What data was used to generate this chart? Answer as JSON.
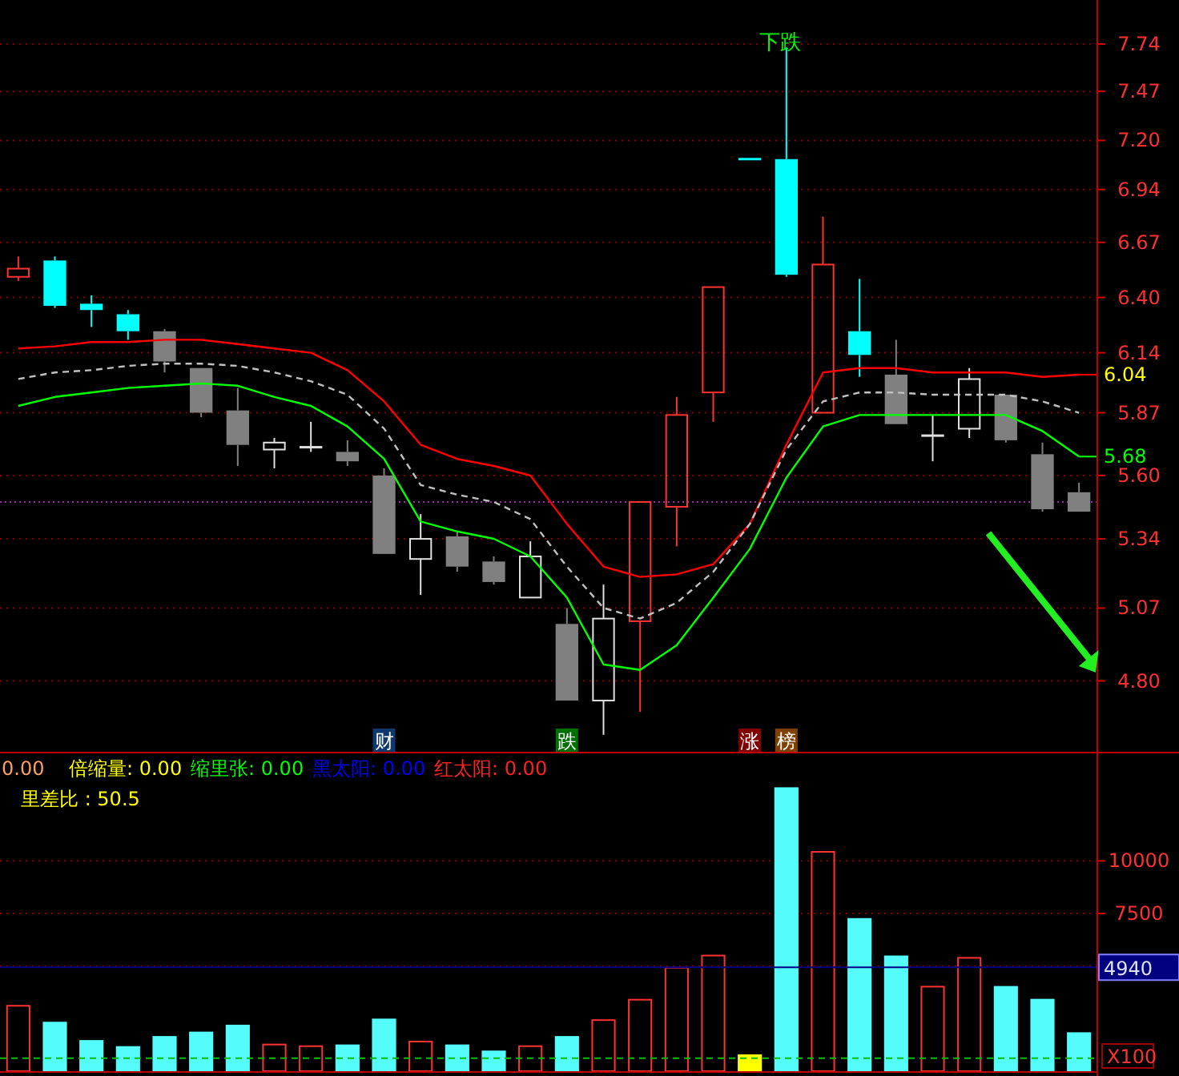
{
  "chart_data": [
    {
      "type": "candlestick",
      "categories": [
        null,
        null,
        null,
        null,
        null,
        null,
        null,
        null,
        null,
        null,
        null,
        null,
        null,
        null,
        null,
        null,
        null,
        null,
        null,
        null,
        null,
        null,
        null,
        null,
        null,
        null,
        null,
        null,
        null,
        null
      ],
      "ohlc": [
        [
          6.5,
          6.6,
          6.48,
          6.54
        ],
        [
          6.58,
          6.6,
          6.35,
          6.36
        ],
        [
          6.37,
          6.41,
          6.26,
          6.34
        ],
        [
          6.32,
          6.34,
          6.2,
          6.24
        ],
        [
          6.24,
          6.25,
          6.05,
          6.1
        ],
        [
          6.07,
          6.07,
          5.85,
          5.87
        ],
        [
          5.88,
          5.98,
          5.64,
          5.73
        ],
        [
          5.71,
          5.76,
          5.63,
          5.74
        ],
        [
          5.72,
          5.83,
          5.7,
          5.72
        ],
        [
          5.7,
          5.75,
          5.64,
          5.66
        ],
        [
          5.6,
          5.63,
          5.28,
          5.28
        ],
        [
          5.26,
          5.44,
          5.12,
          5.34
        ],
        [
          5.35,
          5.37,
          5.21,
          5.23
        ],
        [
          5.25,
          5.27,
          5.16,
          5.17
        ],
        [
          5.11,
          5.33,
          5.11,
          5.27
        ],
        [
          5.01,
          5.07,
          4.73,
          4.73
        ],
        [
          4.73,
          5.16,
          4.61,
          5.03
        ],
        [
          5.02,
          5.49,
          4.69,
          5.49
        ],
        [
          5.47,
          5.94,
          5.31,
          5.86
        ],
        [
          5.96,
          6.45,
          5.83,
          6.45
        ],
        [
          7.1,
          7.1,
          7.1,
          7.1
        ],
        [
          7.1,
          7.72,
          6.5,
          6.51
        ],
        [
          5.87,
          6.8,
          5.87,
          6.56
        ],
        [
          6.24,
          6.49,
          6.03,
          6.13
        ],
        [
          6.04,
          6.2,
          5.82,
          5.82
        ],
        [
          5.77,
          5.86,
          5.66,
          5.77
        ],
        [
          5.8,
          6.07,
          5.76,
          6.02
        ],
        [
          5.95,
          5.95,
          5.74,
          5.75
        ],
        [
          5.69,
          5.74,
          5.45,
          5.46
        ],
        [
          5.53,
          5.57,
          5.45,
          5.45
        ]
      ],
      "colors": [
        "#ff3232",
        "#00ffff",
        "#00ffff",
        "#00ffff",
        "#808080",
        "#808080",
        "#808080",
        "#e0e0e0",
        "#e0e0e0",
        "#808080",
        "#808080",
        "#e0e0e0",
        "#808080",
        "#808080",
        "#e0e0e0",
        "#808080",
        "#e0e0e0",
        "#ff3232",
        "#ff3232",
        "#ff3232",
        "#00ffff",
        "#00ffff",
        "#ff3232",
        "#00ffff",
        "#808080",
        "#e0e0e0",
        "#e0e0e0",
        "#808080",
        "#808080",
        "#808080"
      ],
      "series": [
        {
          "type": "line",
          "color": "#ff0000",
          "line_style": "solid",
          "values": [
            6.16,
            6.17,
            6.19,
            6.19,
            6.2,
            6.2,
            6.18,
            6.16,
            6.14,
            6.06,
            5.92,
            5.73,
            5.67,
            5.64,
            5.6,
            5.4,
            5.23,
            5.19,
            5.2,
            5.24,
            5.4,
            5.73,
            6.05,
            6.07,
            6.07,
            6.05,
            6.05,
            6.05,
            6.03,
            6.04
          ],
          "value_labels": [
            null,
            null,
            null,
            null,
            null,
            null,
            null,
            null,
            null,
            null,
            null,
            null,
            null,
            null,
            null,
            null,
            null,
            null,
            null,
            null,
            null,
            null,
            null,
            null,
            null,
            null,
            null,
            null,
            null,
            "6.04"
          ]
        },
        {
          "type": "line",
          "color": "#c0c0c0",
          "line_style": "dashed",
          "values": [
            6.02,
            6.05,
            6.06,
            6.08,
            6.09,
            6.09,
            6.08,
            6.05,
            6.01,
            5.95,
            5.8,
            5.56,
            5.52,
            5.49,
            5.42,
            5.23,
            5.07,
            5.03,
            5.09,
            5.21,
            5.4,
            5.71,
            5.92,
            5.96,
            5.96,
            5.95,
            5.95,
            5.95,
            5.92,
            5.87
          ]
        },
        {
          "type": "line",
          "color": "#00ff00",
          "line_style": "solid",
          "values": [
            5.9,
            5.94,
            5.96,
            5.98,
            5.99,
            6.0,
            5.99,
            5.94,
            5.9,
            5.81,
            5.67,
            5.41,
            5.37,
            5.34,
            5.27,
            5.11,
            4.86,
            4.84,
            4.93,
            5.11,
            5.3,
            5.59,
            5.81,
            5.86,
            5.86,
            5.86,
            5.86,
            5.86,
            5.79,
            5.68
          ],
          "value_labels": [
            null,
            null,
            null,
            null,
            null,
            null,
            null,
            null,
            null,
            null,
            null,
            null,
            null,
            null,
            null,
            null,
            null,
            null,
            null,
            null,
            null,
            null,
            null,
            null,
            null,
            null,
            null,
            null,
            null,
            "5.68"
          ]
        }
      ],
      "log": "y",
      "ylim": [
        4.56,
        8.0
      ],
      "yticks": [
        {
          "value": 4.8,
          "label": "4.80"
        },
        5.07,
        5.34,
        {
          "value": 5.6,
          "label": "5.60"
        },
        5.87,
        6.14,
        {
          "value": 6.4,
          "label": "6.40"
        },
        6.67,
        6.94,
        {
          "value": 7.2,
          "label": "7.20"
        },
        7.47,
        7.74
      ],
      "grid": "y",
      "tick_labels": "y",
      "ref_lines": [
        {
          "axis": "y",
          "value": 5.49,
          "color": "#a020b0",
          "line_style": "dotted"
        }
      ],
      "annotations": [
        {
          "text": "下跌",
          "y": 7.72
        },
        "财",
        "跌",
        "涨",
        "榜"
      ]
    },
    {
      "type": "bar",
      "categories": [
        null,
        null,
        null,
        null,
        null,
        null,
        null,
        null,
        null,
        null,
        null,
        null,
        null,
        null,
        null,
        null,
        null,
        null,
        null,
        null,
        null,
        null,
        null,
        null,
        null,
        null,
        null,
        null,
        null,
        null
      ],
      "values": [
        3110,
        2350,
        1480,
        1190,
        1670,
        1880,
        2210,
        1270,
        1190,
        1270,
        2500,
        1410,
        1270,
        980,
        1190,
        1670,
        2430,
        3400,
        4920,
        5500,
        800,
        13500,
        10430,
        7280,
        5500,
        4020,
        5390,
        4050,
        3440,
        1850
      ],
      "colors": [
        "#ff3232",
        "#54fcfc",
        "#54fcfc",
        "#54fcfc",
        "#54fcfc",
        "#54fcfc",
        "#54fcfc",
        "#ff3232",
        "#ff3232",
        "#54fcfc",
        "#54fcfc",
        "#ff3232",
        "#54fcfc",
        "#54fcfc",
        "#ff3232",
        "#54fcfc",
        "#ff3232",
        "#ff3232",
        "#ff3232",
        "#ff3232",
        "#ffff00",
        "#54fcfc",
        "#ff3232",
        "#54fcfc",
        "#54fcfc",
        "#ff3232",
        "#ff3232",
        "#54fcfc",
        "#54fcfc",
        "#54fcfc"
      ],
      "ylim": [
        0,
        15000
      ],
      "yticks": [
        {
          "value": 5000,
          "label": null
        },
        7500,
        10000
      ],
      "ylabel": "X100",
      "grid": "y",
      "tick_labels": "y",
      "ref_lines": [
        {
          "axis": "y",
          "value": 4940,
          "label": "4940",
          "color": "#000080"
        },
        {
          "axis": "y",
          "value": 620,
          "color": "#00c000",
          "line_style": "dashed"
        }
      ],
      "annotations": [
        "0.00",
        "倍缩量: 0.00",
        "缩里张: 0.00",
        "黑太阳: 0.00",
        "红太阳: 0.00",
        "里差比 : 50.5"
      ]
    }
  ]
}
